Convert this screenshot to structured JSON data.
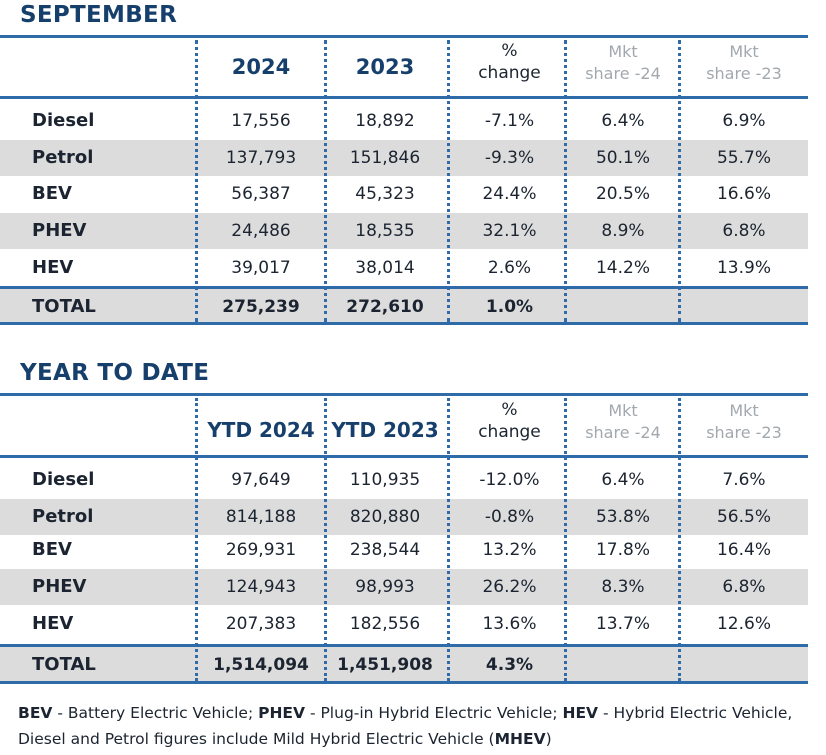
{
  "sections": [
    {
      "title": "SEPTEMBER",
      "headers": {
        "y1": "2024",
        "y2": "2023",
        "pct_l1": "%",
        "pct_l2": "change",
        "m1_l1": "Mkt",
        "m1_l2": "share -24",
        "m2_l1": "Mkt",
        "m2_l2": "share -23"
      },
      "rows": [
        {
          "label": "Diesel",
          "v1": "17,556",
          "v2": "18,892",
          "pct": "-7.1%",
          "m1": "6.4%",
          "m2": "6.9%"
        },
        {
          "label": "Petrol",
          "v1": "137,793",
          "v2": "151,846",
          "pct": "-9.3%",
          "m1": "50.1%",
          "m2": "55.7%"
        },
        {
          "label": "BEV",
          "v1": "56,387",
          "v2": "45,323",
          "pct": "24.4%",
          "m1": "20.5%",
          "m2": "16.6%"
        },
        {
          "label": "PHEV",
          "v1": "24,486",
          "v2": "18,535",
          "pct": "32.1%",
          "m1": "8.9%",
          "m2": "6.8%"
        },
        {
          "label": "HEV",
          "v1": "39,017",
          "v2": "38,014",
          "pct": "2.6%",
          "m1": "14.2%",
          "m2": "13.9%"
        }
      ],
      "total": {
        "label": "TOTAL",
        "v1": "275,239",
        "v2": "272,610",
        "pct": "1.0%",
        "m1": "",
        "m2": ""
      }
    },
    {
      "title": "YEAR TO DATE",
      "headers": {
        "y1": "YTD 2024",
        "y2": "YTD 2023",
        "pct_l1": "%",
        "pct_l2": "change",
        "m1_l1": "Mkt",
        "m1_l2": "share -24",
        "m2_l1": "Mkt",
        "m2_l2": "share -23"
      },
      "rows": [
        {
          "label": "Diesel",
          "v1": "97,649",
          "v2": "110,935",
          "pct": "-12.0%",
          "m1": "6.4%",
          "m2": "7.6%"
        },
        {
          "label": "Petrol",
          "v1": "814,188",
          "v2": "820,880",
          "pct": "-0.8%",
          "m1": "53.8%",
          "m2": "56.5%"
        },
        {
          "label": "BEV",
          "v1": "269,931",
          "v2": "238,544",
          "pct": "13.2%",
          "m1": "17.8%",
          "m2": "16.4%"
        },
        {
          "label": "PHEV",
          "v1": "124,943",
          "v2": "98,993",
          "pct": "26.2%",
          "m1": "8.3%",
          "m2": "6.8%"
        },
        {
          "label": "HEV",
          "v1": "207,383",
          "v2": "182,556",
          "pct": "13.6%",
          "m1": "13.7%",
          "m2": "12.6%"
        }
      ],
      "total": {
        "label": "TOTAL",
        "v1": "1,514,094",
        "v2": "1,451,908",
        "pct": "4.3%",
        "m1": "",
        "m2": ""
      }
    }
  ],
  "footnote": {
    "bev_abbr": "BEV",
    "bev_text": " - Battery Electric Vehicle; ",
    "phev_abbr": "PHEV",
    "phev_text": " - Plug-in Hybrid Electric Vehicle; ",
    "hev_abbr": "HEV",
    "hev_text": " - Hybrid Electric Vehicle,",
    "line2_text": "Diesel and Petrol figures include Mild Hybrid Electric Vehicle (",
    "mhev_abbr": "MHEV",
    "line2_end": ")"
  },
  "colors": {
    "title": "#173f6b",
    "rule": "#2f6aa9",
    "shade": "#dcdcdc",
    "mkt_header": "#a3a8ae"
  }
}
